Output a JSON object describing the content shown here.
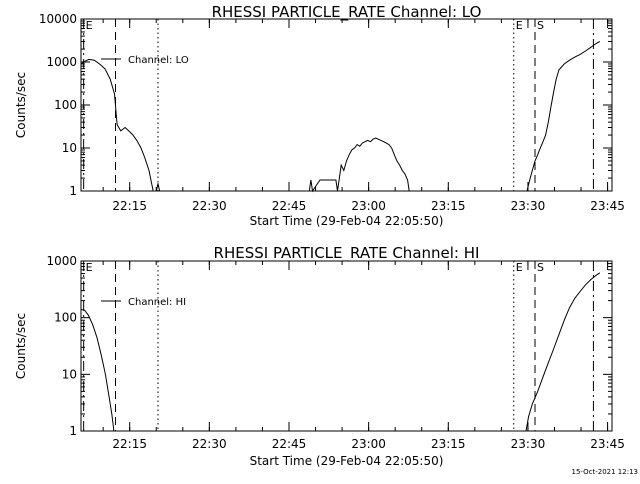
{
  "footer_timestamp": "15-Oct-2021 12:13",
  "chart_data": [
    {
      "type": "line",
      "title": "RHESSI PARTICLE_RATE Channel: LO",
      "xlabel": "Start Time (29-Feb-04 22:05:50)",
      "ylabel": "Counts/sec",
      "y_scale": "log",
      "ylim": [
        1,
        10000
      ],
      "xlim_minutes": [
        0,
        100
      ],
      "x_ticks": [
        {
          "label": "22:15",
          "minute": 9.17
        },
        {
          "label": "22:30",
          "minute": 24.17
        },
        {
          "label": "22:45",
          "minute": 39.17
        },
        {
          "label": "23:00",
          "minute": 54.17
        },
        {
          "label": "23:15",
          "minute": 69.17
        },
        {
          "label": "23:30",
          "minute": 84.17
        },
        {
          "label": "23:45",
          "minute": 99.17
        }
      ],
      "y_ticks": [
        {
          "label": "1",
          "value": 1
        },
        {
          "label": "10",
          "value": 10
        },
        {
          "label": "100",
          "value": 100
        },
        {
          "label": "1000",
          "value": 1000
        },
        {
          "label": "10000",
          "value": 10000
        }
      ],
      "legend": {
        "label": "Channel: LO",
        "placement": "top-left"
      },
      "markers": [
        {
          "label": "E",
          "minute": 0.5,
          "style": "dashdot"
        },
        {
          "label": "",
          "minute": 6.5,
          "style": "dashed"
        },
        {
          "label": "",
          "minute": 14.5,
          "style": "dotted"
        },
        {
          "label": "E",
          "minute": 81.5,
          "style": "dotted"
        },
        {
          "label": "S",
          "minute": 85.5,
          "style": "dashed"
        },
        {
          "label": "",
          "minute": 96.5,
          "style": "dashdot"
        }
      ],
      "series": [
        {
          "segments": [
            [
              [
                0,
                900
              ],
              [
                0.8,
                1050
              ],
              [
                1.5,
                1150
              ],
              [
                2.5,
                1100
              ],
              [
                3.5,
                900
              ],
              [
                4.5,
                700
              ],
              [
                5.5,
                400
              ],
              [
                6.3,
                180
              ],
              [
                6.8,
                35
              ],
              [
                7.5,
                25
              ],
              [
                8.3,
                30
              ],
              [
                9,
                25
              ],
              [
                9.8,
                20
              ],
              [
                10.5,
                15
              ],
              [
                11.3,
                10
              ],
              [
                12,
                6
              ],
              [
                12.8,
                3
              ],
              [
                13.3,
                1.5
              ],
              [
                13.6,
                1
              ]
            ],
            [
              [
                14.2,
                1
              ],
              [
                14.5,
                1.5
              ],
              [
                14.8,
                1
              ]
            ],
            [
              [
                43,
                1
              ],
              [
                43.3,
                1.8
              ],
              [
                43.6,
                1
              ],
              [
                45,
                1.8
              ],
              [
                48,
                1.8
              ],
              [
                48.3,
                1
              ],
              [
                48.6,
                1.8
              ],
              [
                49,
                4
              ],
              [
                49.5,
                3
              ],
              [
                50,
                5
              ],
              [
                50.5,
                7
              ],
              [
                51,
                9
              ],
              [
                51.5,
                10
              ],
              [
                52,
                12
              ],
              [
                52.5,
                11
              ],
              [
                53,
                13
              ],
              [
                53.5,
                14
              ],
              [
                54,
                15
              ],
              [
                54.5,
                14
              ],
              [
                55,
                16
              ],
              [
                55.5,
                17
              ],
              [
                56,
                16
              ],
              [
                56.5,
                15
              ],
              [
                57,
                14
              ],
              [
                57.5,
                13
              ],
              [
                58,
                12
              ],
              [
                58.5,
                10
              ],
              [
                59,
                7
              ],
              [
                59.5,
                5
              ],
              [
                60,
                4
              ],
              [
                60.5,
                3
              ],
              [
                61,
                2.5
              ],
              [
                61.5,
                1.8
              ],
              [
                61.8,
                1
              ]
            ],
            [
              [
                84,
                1
              ],
              [
                84.5,
                1.8
              ],
              [
                85,
                3
              ],
              [
                85.5,
                5
              ],
              [
                86,
                7
              ],
              [
                86.5,
                10
              ],
              [
                87,
                14
              ],
              [
                87.5,
                20
              ],
              [
                88,
                40
              ],
              [
                88.5,
                90
              ],
              [
                89,
                200
              ],
              [
                89.5,
                400
              ],
              [
                90,
                650
              ],
              [
                91,
                900
              ],
              [
                92,
                1100
              ],
              [
                93,
                1300
              ],
              [
                94,
                1500
              ],
              [
                95,
                1800
              ],
              [
                96,
                2200
              ],
              [
                97,
                2700
              ],
              [
                97.7,
                3000
              ]
            ]
          ]
        }
      ]
    },
    {
      "type": "line",
      "title": "RHESSI PARTICLE_RATE Channel: HI",
      "xlabel": "Start Time (29-Feb-04 22:05:50)",
      "ylabel": "Counts/sec",
      "y_scale": "log",
      "ylim": [
        1,
        1000
      ],
      "xlim_minutes": [
        0,
        100
      ],
      "x_ticks": [
        {
          "label": "22:15",
          "minute": 9.17
        },
        {
          "label": "22:30",
          "minute": 24.17
        },
        {
          "label": "22:45",
          "minute": 39.17
        },
        {
          "label": "23:00",
          "minute": 54.17
        },
        {
          "label": "23:15",
          "minute": 69.17
        },
        {
          "label": "23:30",
          "minute": 84.17
        },
        {
          "label": "23:45",
          "minute": 99.17
        }
      ],
      "y_ticks": [
        {
          "label": "1",
          "value": 1
        },
        {
          "label": "10",
          "value": 10
        },
        {
          "label": "100",
          "value": 100
        },
        {
          "label": "1000",
          "value": 1000
        }
      ],
      "legend": {
        "label": "Channel: HI",
        "placement": "top-left"
      },
      "markers": [
        {
          "label": "E",
          "minute": 0.5,
          "style": "dashdot"
        },
        {
          "label": "",
          "minute": 6.5,
          "style": "dashed"
        },
        {
          "label": "",
          "minute": 14.5,
          "style": "dotted"
        },
        {
          "label": "E",
          "minute": 81.5,
          "style": "dotted"
        },
        {
          "label": "S",
          "minute": 85.5,
          "style": "dashed"
        },
        {
          "label": "",
          "minute": 96.5,
          "style": "dashdot"
        }
      ],
      "series": [
        {
          "segments": [
            [
              [
                0,
                140
              ],
              [
                0.7,
                135
              ],
              [
                1.4,
                110
              ],
              [
                2.2,
                75
              ],
              [
                3,
                45
              ],
              [
                3.8,
                22
              ],
              [
                4.6,
                10
              ],
              [
                5.3,
                4
              ],
              [
                5.8,
                2
              ],
              [
                6.2,
                1
              ]
            ],
            [
              [
                83.8,
                1
              ],
              [
                84.3,
                1.8
              ],
              [
                85,
                3
              ],
              [
                86,
                5
              ],
              [
                87,
                9
              ],
              [
                88,
                16
              ],
              [
                89,
                28
              ],
              [
                90,
                50
              ],
              [
                91,
                90
              ],
              [
                92,
                150
              ],
              [
                93,
                220
              ],
              [
                94,
                290
              ],
              [
                95,
                380
              ],
              [
                96,
                470
              ],
              [
                97,
                560
              ],
              [
                97.7,
                620
              ]
            ]
          ]
        }
      ]
    }
  ]
}
